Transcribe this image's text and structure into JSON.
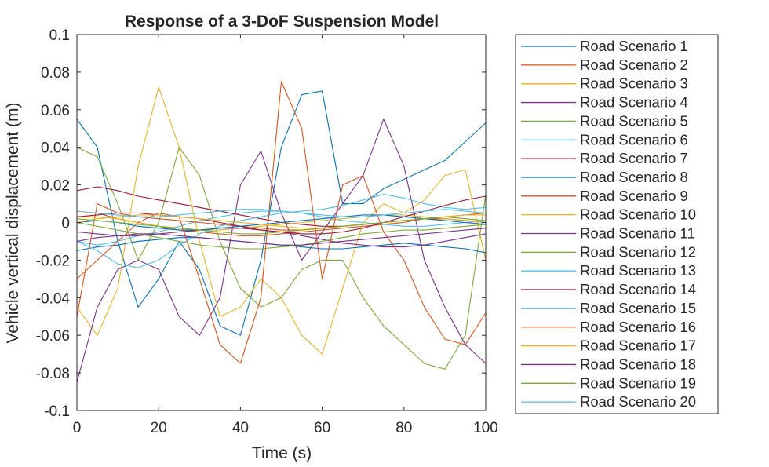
{
  "chart_data": {
    "type": "line",
    "title": "Response of a 3-DoF Suspension Model",
    "xlabel": "Time (s)",
    "ylabel": "Vehicle vertical displacement (m)",
    "xlim": [
      0,
      100
    ],
    "ylim": [
      -0.1,
      0.1
    ],
    "xticks": [
      0,
      20,
      40,
      60,
      80,
      100
    ],
    "xtick_labels": [
      "0",
      "20",
      "40",
      "60",
      "80",
      "100"
    ],
    "yticks": [
      -0.1,
      -0.08,
      -0.06,
      -0.04,
      -0.02,
      0,
      0.02,
      0.04,
      0.06,
      0.08,
      0.1
    ],
    "ytick_labels": [
      "-0.1",
      "-0.08",
      "-0.06",
      "-0.04",
      "-0.02",
      "0",
      "0.02",
      "0.04",
      "0.06",
      "0.08",
      "0.1"
    ],
    "grid": false,
    "legend_position": "outside-right",
    "x": [
      0,
      5,
      10,
      15,
      20,
      25,
      30,
      35,
      40,
      45,
      50,
      55,
      60,
      65,
      70,
      75,
      80,
      85,
      90,
      95,
      100
    ],
    "series": [
      {
        "name": "Road Scenario 1",
        "color": "#0072BD",
        "values": [
          0.055,
          0.04,
          -0.01,
          -0.045,
          -0.03,
          -0.01,
          -0.025,
          -0.055,
          -0.06,
          -0.02,
          0.04,
          0.068,
          0.07,
          0.01,
          0.01,
          0.018,
          0.023,
          0.028,
          0.033,
          0.043,
          0.053
        ]
      },
      {
        "name": "Road Scenario 2",
        "color": "#D95319",
        "values": [
          0.005,
          0.005,
          0.002,
          0.0,
          -0.002,
          -0.004,
          -0.005,
          -0.006,
          -0.007,
          -0.007,
          -0.006,
          -0.005,
          -0.004,
          -0.003,
          -0.002,
          -0.001,
          0.0,
          0.002,
          0.003,
          0.004,
          0.005
        ]
      },
      {
        "name": "Road Scenario 3",
        "color": "#EDB120",
        "values": [
          -0.045,
          -0.06,
          -0.035,
          0.03,
          0.072,
          0.04,
          -0.01,
          -0.05,
          -0.045,
          -0.03,
          -0.04,
          -0.06,
          -0.07,
          -0.035,
          0.0,
          0.01,
          0.005,
          0.012,
          0.025,
          0.028,
          -0.02
        ]
      },
      {
        "name": "Road Scenario 4",
        "color": "#7E2F8E",
        "values": [
          -0.085,
          -0.045,
          -0.025,
          -0.02,
          -0.025,
          -0.05,
          -0.06,
          -0.04,
          0.02,
          0.038,
          0.005,
          -0.02,
          -0.005,
          0.01,
          0.025,
          0.055,
          0.03,
          -0.02,
          -0.045,
          -0.065,
          -0.075
        ]
      },
      {
        "name": "Road Scenario 5",
        "color": "#77AC30",
        "values": [
          0.04,
          0.035,
          0.01,
          -0.02,
          0.0,
          0.04,
          0.025,
          -0.01,
          -0.035,
          -0.045,
          -0.04,
          -0.025,
          -0.02,
          -0.02,
          -0.04,
          -0.055,
          -0.065,
          -0.075,
          -0.078,
          -0.06,
          0.015
        ]
      },
      {
        "name": "Road Scenario 6",
        "color": "#4DBEEE",
        "values": [
          -0.01,
          -0.012,
          -0.01,
          -0.007,
          -0.005,
          -0.002,
          0.001,
          0.003,
          0.005,
          0.006,
          0.006,
          0.005,
          0.003,
          0.001,
          0.0,
          -0.001,
          -0.002,
          -0.002,
          -0.001,
          0.0,
          0.001
        ]
      },
      {
        "name": "Road Scenario 7",
        "color": "#A2142F",
        "values": [
          0.017,
          0.019,
          0.017,
          0.014,
          0.012,
          0.01,
          0.008,
          0.006,
          0.004,
          0.002,
          0.0,
          -0.001,
          -0.002,
          -0.002,
          -0.001,
          0.0,
          0.001,
          0.002,
          0.002,
          0.001,
          0.0
        ]
      },
      {
        "name": "Road Scenario 8",
        "color": "#0072BD",
        "values": [
          -0.015,
          -0.013,
          -0.012,
          -0.01,
          -0.009,
          -0.008,
          -0.008,
          -0.009,
          -0.01,
          -0.011,
          -0.012,
          -0.013,
          -0.014,
          -0.014,
          -0.013,
          -0.012,
          -0.011,
          -0.012,
          -0.013,
          -0.014,
          -0.016
        ]
      },
      {
        "name": "Road Scenario 9",
        "color": "#D95319",
        "values": [
          -0.05,
          0.01,
          0.005,
          0.003,
          0.002,
          0.001,
          0.0,
          -0.001,
          -0.002,
          -0.003,
          -0.004,
          -0.004,
          -0.003,
          -0.002,
          -0.001,
          0.0,
          0.001,
          0.002,
          0.002,
          0.001,
          0.0
        ]
      },
      {
        "name": "Road Scenario 10",
        "color": "#EDB120",
        "values": [
          0.003,
          0.003,
          0.002,
          0.0,
          -0.002,
          -0.003,
          -0.004,
          -0.004,
          -0.003,
          -0.002,
          -0.001,
          0.0,
          0.001,
          0.002,
          0.003,
          0.004,
          0.004,
          0.003,
          0.002,
          0.001,
          0.0
        ]
      },
      {
        "name": "Road Scenario 11",
        "color": "#7E2F8E",
        "values": [
          -0.005,
          -0.006,
          -0.007,
          -0.007,
          -0.006,
          -0.005,
          -0.004,
          -0.003,
          -0.003,
          -0.004,
          -0.005,
          -0.007,
          -0.009,
          -0.011,
          -0.012,
          -0.013,
          -0.013,
          -0.012,
          -0.01,
          -0.008,
          -0.006
        ]
      },
      {
        "name": "Road Scenario 12",
        "color": "#77AC30",
        "values": [
          0.0,
          -0.002,
          -0.004,
          -0.006,
          -0.008,
          -0.01,
          -0.012,
          -0.013,
          -0.014,
          -0.014,
          -0.013,
          -0.012,
          -0.01,
          -0.008,
          -0.006,
          -0.005,
          -0.004,
          -0.004,
          -0.003,
          -0.002,
          -0.001
        ]
      },
      {
        "name": "Road Scenario 13",
        "color": "#4DBEEE",
        "values": [
          -0.01,
          -0.015,
          -0.022,
          -0.024,
          -0.02,
          -0.012,
          -0.006,
          -0.002,
          0.001,
          0.003,
          0.005,
          0.006,
          0.007,
          0.009,
          0.012,
          0.015,
          0.013,
          0.01,
          0.008,
          0.007,
          0.008
        ]
      },
      {
        "name": "Road Scenario 14",
        "color": "#A2142F",
        "values": [
          0.003,
          0.004,
          0.005,
          0.005,
          0.004,
          0.003,
          0.002,
          0.0,
          -0.002,
          -0.004,
          -0.005,
          -0.006,
          -0.006,
          -0.005,
          -0.003,
          0.0,
          0.003,
          0.006,
          0.009,
          0.012,
          0.014
        ]
      },
      {
        "name": "Road Scenario 15",
        "color": "#0072BD",
        "values": [
          0.0,
          0.001,
          0.0,
          -0.002,
          -0.003,
          -0.004,
          -0.004,
          -0.003,
          -0.002,
          -0.001,
          0.0,
          0.001,
          0.002,
          0.003,
          0.004,
          0.004,
          0.003,
          0.002,
          0.001,
          0.0,
          -0.001
        ]
      },
      {
        "name": "Road Scenario 16",
        "color": "#D95319",
        "values": [
          -0.03,
          -0.02,
          -0.01,
          0.0,
          0.005,
          0.003,
          -0.03,
          -0.065,
          -0.075,
          -0.04,
          0.075,
          0.05,
          -0.03,
          0.02,
          0.025,
          -0.005,
          -0.02,
          -0.045,
          -0.062,
          -0.065,
          -0.048
        ]
      },
      {
        "name": "Road Scenario 17",
        "color": "#EDB120",
        "values": [
          0.0,
          0.002,
          0.003,
          0.004,
          0.004,
          0.003,
          0.002,
          0.001,
          0.0,
          -0.001,
          -0.002,
          -0.003,
          -0.003,
          -0.002,
          -0.001,
          0.0,
          0.001,
          0.002,
          0.003,
          0.004,
          0.004
        ]
      },
      {
        "name": "Road Scenario 18",
        "color": "#7E2F8E",
        "values": [
          -0.01,
          -0.008,
          -0.007,
          -0.006,
          -0.006,
          -0.007,
          -0.008,
          -0.009,
          -0.01,
          -0.011,
          -0.012,
          -0.012,
          -0.011,
          -0.01,
          -0.009,
          -0.008,
          -0.007,
          -0.006,
          -0.005,
          -0.004,
          -0.003
        ]
      },
      {
        "name": "Road Scenario 19",
        "color": "#77AC30",
        "values": [
          0.002,
          0.001,
          0.0,
          -0.001,
          -0.002,
          -0.003,
          -0.004,
          -0.005,
          -0.006,
          -0.006,
          -0.005,
          -0.004,
          -0.003,
          -0.002,
          -0.001,
          0.0,
          0.001,
          0.002,
          0.003,
          0.002,
          0.001
        ]
      },
      {
        "name": "Road Scenario 20",
        "color": "#4DBEEE",
        "values": [
          0.006,
          0.005,
          0.004,
          0.003,
          0.003,
          0.004,
          0.005,
          0.006,
          0.007,
          0.007,
          0.006,
          0.005,
          0.004,
          0.003,
          0.003,
          0.004,
          0.005,
          0.006,
          0.007,
          0.006,
          0.005
        ]
      }
    ]
  }
}
